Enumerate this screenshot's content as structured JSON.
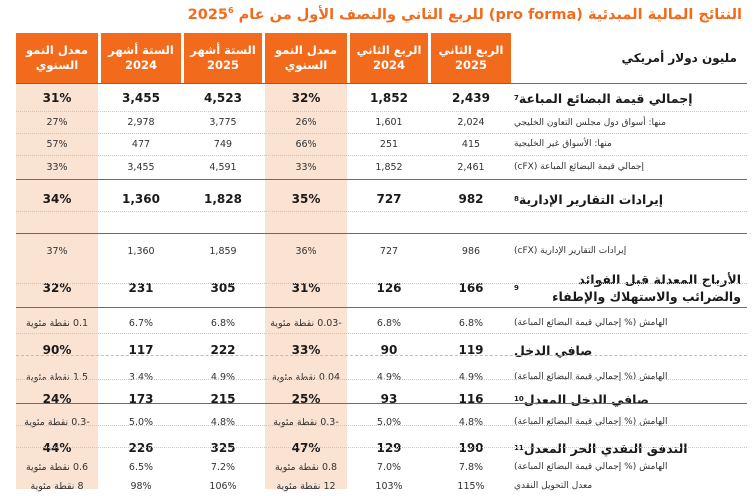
{
  "title": "النتائج المالية المبدئية (pro forma) للربع الثاني والنصف الأول من عام 2025",
  "title_sup": "6",
  "headers": {
    "label": "مليون دولار أمريكي",
    "q2_2025": [
      "الربع الثاني",
      "2025"
    ],
    "q2_2024": [
      "الربع الثاني",
      "2024"
    ],
    "yoy_q": [
      "معدل النمو",
      "السنوي"
    ],
    "h1_2025": [
      "الستة أشهر",
      "2025"
    ],
    "h1_2024": [
      "الستة أشهر",
      "2024"
    ],
    "yoy_h": [
      "معدل النمو",
      "السنوي"
    ]
  },
  "rows": [
    {
      "type": "main",
      "label": "إجمالي قيمة البضائع المباعة",
      "sup": "7",
      "q25": "2,439",
      "q24": "1,852",
      "gq": "32%",
      "h25": "4,523",
      "h24": "3,455",
      "gh": "31%"
    },
    {
      "type": "sub",
      "label": "منها: أسواق دول مجلس التعاون الخليجي",
      "sup": "",
      "q25": "2,024",
      "q24": "1,601",
      "gq": "26%",
      "h25": "3,775",
      "h24": "2,978",
      "gh": "27%"
    },
    {
      "type": "sub",
      "label": "منها: الأسواق غير الخليجية",
      "sup": "",
      "q25": "415",
      "q24": "251",
      "gq": "66%",
      "h25": "749",
      "h24": "477",
      "gh": "57%"
    },
    {
      "type": "sub",
      "label": "إجمالي قيمة البضائع المباعة (cFX)",
      "sup": "",
      "q25": "2,461",
      "q24": "1,852",
      "gq": "33%",
      "h25": "4,591",
      "h24": "3,455",
      "gh": "33%"
    },
    {
      "type": "main",
      "label": "إيرادات التقارير الإدارية",
      "sup": "8",
      "q25": "982",
      "q24": "727",
      "gq": "35%",
      "h25": "1,828",
      "h24": "1,360",
      "gh": "34%"
    },
    {
      "type": "sub",
      "label": "إيرادات التقارير الإدارية (cFX)",
      "sup": "",
      "q25": "986",
      "q24": "727",
      "gq": "36%",
      "h25": "1,859",
      "h24": "1,360",
      "gh": "37%"
    },
    {
      "type": "main",
      "label": "الأرباح المعدلة قبل الفوائد والضرائب والاستهلاك والإطفاء",
      "sup": "9",
      "q25": "166",
      "q24": "126",
      "gq": "31%",
      "h25": "305",
      "h24": "231",
      "gh": "32%"
    },
    {
      "type": "sub",
      "label": "الهامش (% إجمالي قيمة البضائع المباعة)",
      "sup": "",
      "q25": "6.8%",
      "q24": "6.8%",
      "gq": "-0.03 نقطة مئوية",
      "h25": "6.8%",
      "h24": "6.7%",
      "gh": "0.1 نقطة مئوية"
    },
    {
      "type": "main",
      "label": "صافي الدخل",
      "sup": "",
      "q25": "119",
      "q24": "90",
      "gq": "33%",
      "h25": "222",
      "h24": "117",
      "gh": "90%"
    },
    {
      "type": "sub",
      "label": "الهامش (% إجمالي قيمة البضائع المباعة)",
      "sup": "",
      "q25": "4.9%",
      "q24": "4.9%",
      "gq": "0.04 نقطة مئوية",
      "h25": "4.9%",
      "h24": "3.4%",
      "gh": "1.5 نقطة مئوية"
    },
    {
      "type": "main",
      "label": "صافي الدخل المعدل",
      "sup": "10",
      "q25": "116",
      "q24": "93",
      "gq": "25%",
      "h25": "215",
      "h24": "173",
      "gh": "24%"
    },
    {
      "type": "sub",
      "label": "الهامش (% إجمالي قيمة البضائع المباعة)",
      "sup": "",
      "q25": "4.8%",
      "q24": "5.0%",
      "gq": "-0.3 نقطة مئوية",
      "h25": "4.8%",
      "h24": "5.0%",
      "gh": "-0.3 نقطة مئوية"
    },
    {
      "type": "main",
      "label": "التدفق النقدي الحر المعدل",
      "sup": "11",
      "q25": "190",
      "q24": "129",
      "gq": "47%",
      "h25": "325",
      "h24": "226",
      "gh": "44%"
    },
    {
      "type": "sub",
      "label": "الهامش (% إجمالي قيمة البضائع المباعة)",
      "sup": "",
      "q25": "7.8%",
      "q24": "7.0%",
      "gq": "0.8 نقطة مئوية",
      "h25": "7.2%",
      "h24": "6.5%",
      "gh": "0.6 نقطة مئوية"
    },
    {
      "type": "sub",
      "label": "معدل التحويل النقدي",
      "sup": "",
      "q25": "115%",
      "q24": "103%",
      "gq": "12 نقطة مئوية",
      "h25": "106%",
      "h24": "98%",
      "gh": "8 نقطة مئوية"
    }
  ],
  "colors": {
    "accent": "#f26b1d",
    "band": "#fbe3d4"
  }
}
